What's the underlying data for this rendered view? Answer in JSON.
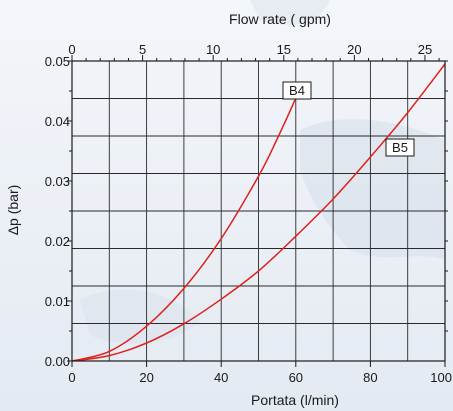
{
  "chart_data": {
    "type": "line",
    "title": "",
    "xlabel": "Portata (l/min)",
    "ylabel": "Δp (bar)",
    "x2label": "Flow rate ( gpm)",
    "xlim": [
      0,
      100
    ],
    "ylim": [
      0,
      0.05
    ],
    "x2lim": [
      0,
      26.42
    ],
    "xtick_labels": [
      "0",
      "20",
      "40",
      "60",
      "80",
      "100"
    ],
    "ytick_labels": [
      "0.00",
      "0.01",
      "0.02",
      "0.03",
      "0.04",
      "0.05"
    ],
    "x2tick_labels": [
      "0",
      "5",
      "10",
      "15",
      "20",
      "25"
    ],
    "grid": true,
    "series": [
      {
        "name": "B4",
        "color": "#e0201c",
        "x": [
          0,
          10,
          20,
          30,
          40,
          50,
          55,
          60
        ],
        "y": [
          0,
          0.0016,
          0.0058,
          0.0121,
          0.0204,
          0.0308,
          0.037,
          0.0438
        ]
      },
      {
        "name": "B5",
        "color": "#e0201c",
        "x": [
          0,
          10,
          20,
          30,
          40,
          50,
          60,
          70,
          80,
          90,
          100
        ],
        "y": [
          0,
          0.0009,
          0.003,
          0.0062,
          0.0103,
          0.015,
          0.0208,
          0.027,
          0.034,
          0.0414,
          0.0495
        ]
      }
    ]
  }
}
